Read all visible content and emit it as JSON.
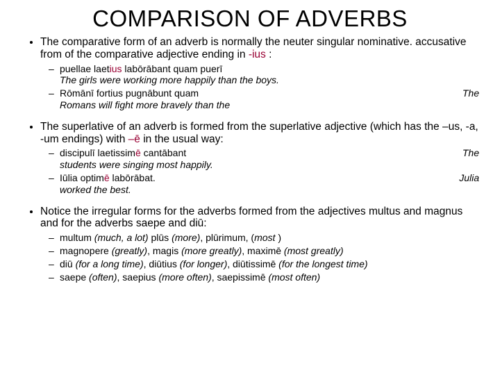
{
  "title": "COMPARISON OF ADVERBS",
  "colors": {
    "highlight": "#990033",
    "text": "#000000",
    "bg": "#ffffff"
  },
  "bullets": [
    {
      "text_parts": [
        "The comparative form of an adverb is normally the neuter singular nominative. accusative from of the comparative adjective ending in  ",
        "-ius",
        " :"
      ],
      "subs": [
        {
          "latin_pre": "puellae laet",
          "latin_hl": "ius",
          "latin_post": " labōrābant quam puerī",
          "trans": "The girls were working more happily than the boys.",
          "trail": ""
        },
        {
          "latin_pre": "Rōmānī fortius pugnābunt quam",
          "latin_hl": "",
          "latin_post": "",
          "trans": "Romans will fight more bravely than the",
          "trail": "The"
        }
      ]
    },
    {
      "text_parts": [
        "The superlative of an adverb is formed from the superlative adjective (which has the –us, -a, -um endings) with ",
        "–ē",
        "  in the usual way:"
      ],
      "subs": [
        {
          "latin_pre": "discipulī laetissim",
          "latin_hl": "ē",
          "latin_post": " cantābant",
          "trans": "students were singing most happily.",
          "trail": "The"
        },
        {
          "latin_pre": "Iūlia optim",
          "latin_hl": "ē",
          "latin_post": " labōrābat.",
          "trans": "worked the best.",
          "trail": "Julia"
        }
      ]
    },
    {
      "text_plain": "Notice the irregular forms for the adverbs formed from the adjectives multus and magnus and for the adverbs saepe and diū:",
      "irreg": [
        {
          "a": "multum",
          "ag": "(much, a lot)",
          "b": " plūs ",
          "bg": "(more)",
          "c": ", plūrimum, (",
          "cg": "most ",
          "d": ")"
        },
        {
          "a": "magnopere ",
          "ag": "(greatly)",
          "b": ", magis ",
          "bg": "(more greatly)",
          "c": ", maximē ",
          "cg": "(most greatly)",
          "d": ""
        },
        {
          "a": "diū ",
          "ag": "(for a long time)",
          "b": ", diūtius ",
          "bg": "(for longer)",
          "c": ", diūtissimē ",
          "cg": "(for the longest time)",
          "d": ""
        },
        {
          "a": "saepe ",
          "ag": "(often)",
          "b": ", saepius ",
          "bg": "(more often)",
          "c": ", saepissimē ",
          "cg": "(most often)",
          "d": ""
        }
      ]
    }
  ]
}
